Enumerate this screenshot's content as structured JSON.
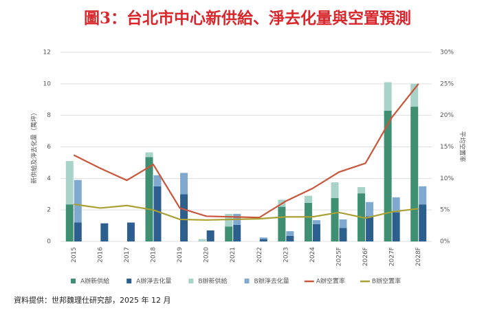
{
  "chart_data": {
    "type": "bar",
    "title": "圖3：台北市中心新供給、淨去化量與空置預測",
    "y_label": "新供給及淨去化量（萬坪）",
    "y2_label": "平均空置率",
    "source": "資料提供：世邦魏理仕研究部，2025 年 12 月",
    "categories": [
      "2015",
      "2016",
      "2017",
      "2018",
      "2019",
      "2020",
      "2021",
      "2022",
      "2023",
      "2024",
      "2025F",
      "2026F",
      "2027F",
      "2028F"
    ],
    "ylim": [
      0,
      12
    ],
    "yticks": [
      0,
      2,
      4,
      6,
      8,
      10,
      12
    ],
    "y2lim": [
      0,
      30
    ],
    "y2ticks": [
      {
        "value": 0,
        "label": "0%"
      },
      {
        "value": 5,
        "label": "5%"
      },
      {
        "value": 10,
        "label": "10%"
      },
      {
        "value": 15,
        "label": "15%"
      },
      {
        "value": 20,
        "label": "20%"
      },
      {
        "value": 25,
        "label": "25%"
      },
      {
        "value": 30,
        "label": "30%"
      }
    ],
    "grid": true,
    "series": [
      {
        "name": "A辦新供給",
        "type": "bar",
        "color": "#3f8f72",
        "values": [
          2.35,
          0,
          0,
          5.35,
          0,
          0,
          0.95,
          0,
          2.2,
          2.45,
          2.75,
          3.05,
          8.3,
          8.55
        ]
      },
      {
        "name": "A辦淨去化量",
        "type": "bar",
        "color": "#2d5f8e",
        "values": [
          1.2,
          1.15,
          1.2,
          3.5,
          3.0,
          0.7,
          1.05,
          0.15,
          0.35,
          1.1,
          0.85,
          1.6,
          1.85,
          2.35
        ]
      },
      {
        "name": "B辦新供給",
        "type": "bar",
        "color": "#a7d3c8",
        "values": [
          2.75,
          0,
          0,
          0.3,
          0,
          0.15,
          0.8,
          0,
          0.45,
          0.45,
          1.0,
          0.4,
          1.8,
          1.45
        ]
      },
      {
        "name": "B辦淨去化量",
        "type": "bar",
        "color": "#7fa9cf",
        "values": [
          2.7,
          0,
          0,
          0.7,
          1.35,
          0,
          0.7,
          0.1,
          0.3,
          0.25,
          0.55,
          0.9,
          0.95,
          1.15
        ]
      },
      {
        "name": "A辦空置率",
        "type": "line",
        "axis": "y2",
        "color": "#c9553a",
        "values": [
          13.7,
          11.6,
          9.7,
          12.2,
          5.3,
          4.0,
          3.9,
          3.8,
          6.4,
          8.4,
          11.0,
          12.4,
          19.7,
          25.0
        ]
      },
      {
        "name": "B辦空置率",
        "type": "line",
        "axis": "y2",
        "color": "#a9a033",
        "values": [
          5.9,
          5.3,
          5.7,
          5.0,
          3.5,
          3.4,
          3.5,
          3.6,
          3.9,
          3.9,
          4.6,
          3.7,
          4.7,
          5.2
        ]
      }
    ]
  }
}
